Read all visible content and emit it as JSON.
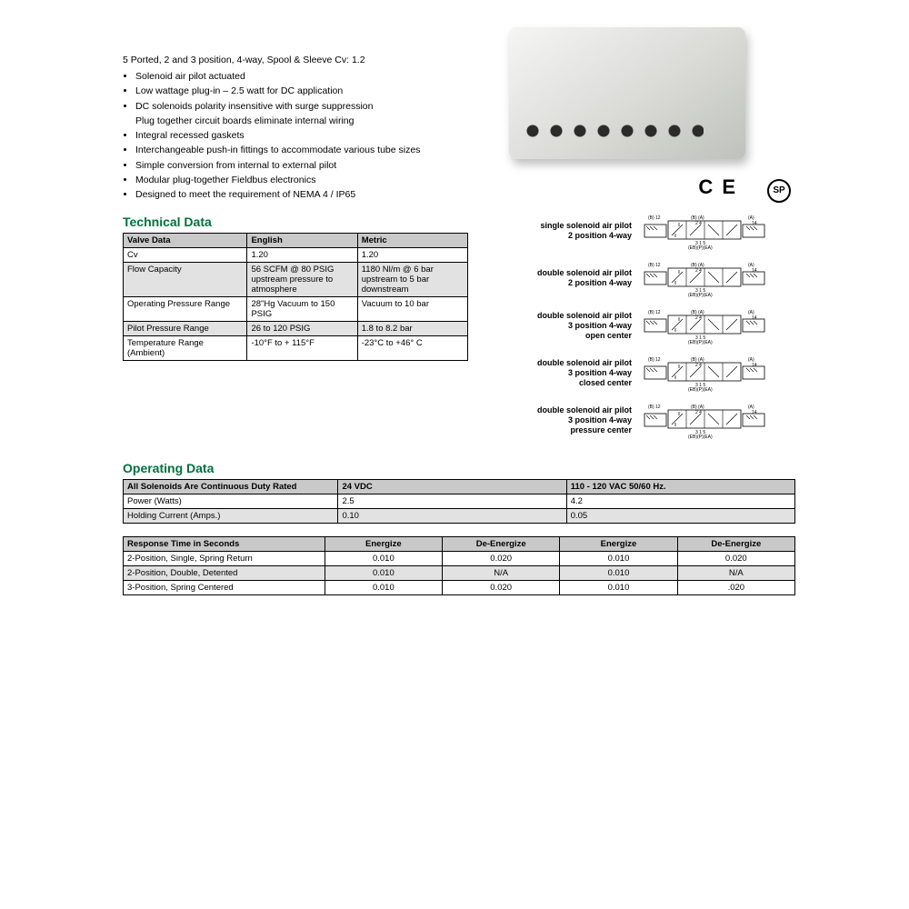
{
  "subtitle": "5 Ported, 2 and 3 position, 4-way, Spool & Sleeve Cv: 1.2",
  "bullets": [
    "Solenoid air pilot actuated",
    "Low wattage plug-in – 2.5 watt for DC application",
    "DC solenoids polarity insensitive with surge suppression",
    "Plug together circuit boards eliminate internal wiring",
    "Integral recessed gaskets",
    "Interchangeable push-in fittings to accommodate various tube sizes",
    "Simple conversion from internal to external pilot",
    "Modular plug-together Fieldbus electronics",
    "Designed to meet the requirement of NEMA 4 / IP65"
  ],
  "bullet_no_marker_index": 3,
  "tech_heading": "Technical Data",
  "tech_table": {
    "headers": [
      "Valve Data",
      "English",
      "Metric"
    ],
    "rows": [
      {
        "cells": [
          "Cv",
          "1.20",
          "1.20"
        ],
        "shade": false
      },
      {
        "cells": [
          "Flow Capacity",
          "56 SCFM @ 80 PSIG upstream pressure to atmosphere",
          "1180 Nl/m @ 6 bar upstream to 5 bar downstream"
        ],
        "shade": true
      },
      {
        "cells": [
          "Operating Pressure Range",
          "28\"Hg Vacuum to 150 PSIG",
          "Vacuum to 10 bar"
        ],
        "shade": false
      },
      {
        "cells": [
          "Pilot Pressure Range",
          "26 to 120 PSIG",
          "1.8 to 8.2 bar"
        ],
        "shade": true
      },
      {
        "cells": [
          "Temperature Range (Ambient)",
          "-10°F to + 115°F",
          "-23°C to +46° C"
        ],
        "shade": false
      }
    ]
  },
  "cert_ce": "C E",
  "cert_csa": "SP",
  "schematics": [
    {
      "l1": "single solenoid air pilot",
      "l2": "2 position 4-way",
      "l3": ""
    },
    {
      "l1": "double solenoid air pilot",
      "l2": "2 position 4-way",
      "l3": ""
    },
    {
      "l1": "double solenoid air pilot",
      "l2": "3 position 4-way",
      "l3": "open center"
    },
    {
      "l1": "double solenoid air pilot",
      "l2": "3 position 4-way",
      "l3": "closed center"
    },
    {
      "l1": "double solenoid air pilot",
      "l2": "3 position 4-way",
      "l3": "pressure center"
    }
  ],
  "schem_top_labels": {
    "b": "(B)",
    "ba": "(B) (A)",
    "a": "(A)",
    "n12": "12",
    "n24": "2 4",
    "n14": "14"
  },
  "schem_bot_labels": {
    "n315": "3 1 5",
    "eb": "(EB)(P)(EA)"
  },
  "op_heading": "Operating Data",
  "op_table1": {
    "header_row": [
      "All Solenoids Are Continuous Duty Rated",
      "24 VDC",
      "110 - 120 VAC 50/60 Hz."
    ],
    "rows": [
      {
        "cells": [
          "Power (Watts)",
          "2.5",
          "4.2"
        ],
        "shade": false
      },
      {
        "cells": [
          "Holding Current (Amps.)",
          "0.10",
          "0.05"
        ],
        "shade": true
      }
    ],
    "col_widths": [
      "32%",
      "34%",
      "34%"
    ]
  },
  "resp_table": {
    "headers": [
      "Response Time in Seconds",
      "Energize",
      "De-Energize",
      "Energize",
      "De-Energize"
    ],
    "rows": [
      {
        "cells": [
          "2-Position, Single, Spring Return",
          "0.010",
          "0.020",
          "0.010",
          "0.020"
        ],
        "shade": false
      },
      {
        "cells": [
          "2-Position, Double, Detented",
          "0.010",
          "N/A",
          "0.010",
          "N/A"
        ],
        "shade": true
      },
      {
        "cells": [
          "3-Position, Spring Centered",
          "0.010",
          "0.020",
          "0.010",
          ".020"
        ],
        "shade": false
      }
    ]
  },
  "colors": {
    "heading": "#00713d",
    "header_bg": "#c9c9c9",
    "shade_bg": "#e2e2e2"
  }
}
